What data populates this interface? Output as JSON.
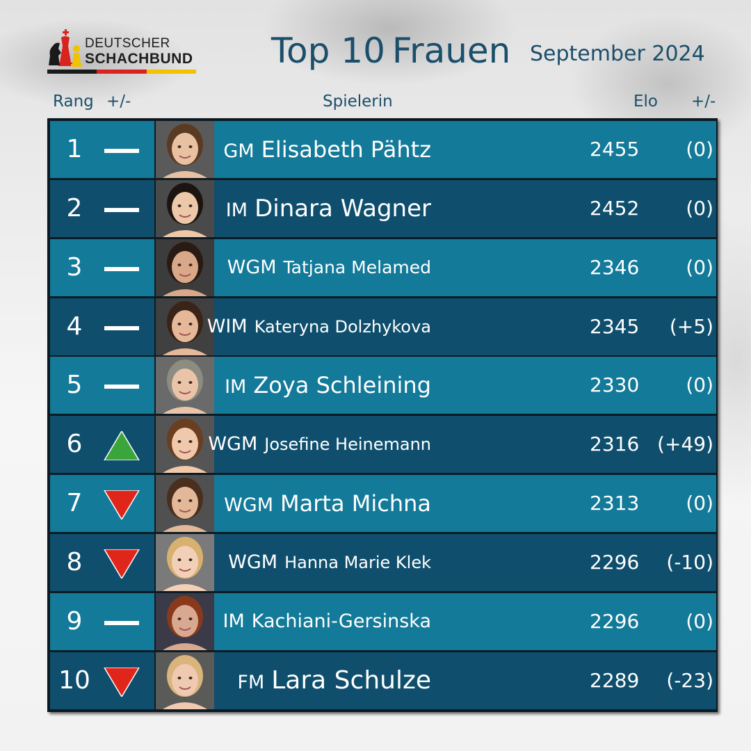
{
  "logo": {
    "line1": "DEUTSCHER",
    "line2": "SCHACHBUND",
    "flag_colors": [
      "#1a1a1a",
      "#d8231f",
      "#f2c200"
    ]
  },
  "header": {
    "title_part1": "Top 10",
    "title_part2": "Frauen",
    "date": "September 2024"
  },
  "columns": {
    "rank": "Rang",
    "rank_change": "+/-",
    "player": "Spielerin",
    "elo": "Elo",
    "elo_change": "+/-"
  },
  "colors": {
    "row_light": "#137a9a",
    "row_dark": "#0f4f6d",
    "up": "#3aa53a",
    "down": "#e0261b",
    "title": "#1a4e6a"
  },
  "rows": [
    {
      "rank": "1",
      "trend": "same",
      "title": "GM",
      "name": "Elisabeth Pähtz",
      "elo": "2455",
      "diff": "(0)"
    },
    {
      "rank": "2",
      "trend": "same",
      "title": "IM",
      "name": "Dinara Wagner",
      "elo": "2452",
      "diff": "(0)"
    },
    {
      "rank": "3",
      "trend": "same",
      "title": "WGM",
      "name": "Tatjana Melamed",
      "elo": "2346",
      "diff": "(0)"
    },
    {
      "rank": "4",
      "trend": "same",
      "title": "WIM",
      "name": "Kateryna Dolzhykova",
      "elo": "2345",
      "diff": "(+5)"
    },
    {
      "rank": "5",
      "trend": "same",
      "title": "IM",
      "name": "Zoya Schleining",
      "elo": "2330",
      "diff": "(0)"
    },
    {
      "rank": "6",
      "trend": "up",
      "title": "WGM",
      "name": "Josefine Heinemann",
      "elo": "2316",
      "diff": "(+49)"
    },
    {
      "rank": "7",
      "trend": "down",
      "title": "WGM",
      "name": "Marta Michna",
      "elo": "2313",
      "diff": "(0)"
    },
    {
      "rank": "8",
      "trend": "down",
      "title": "WGM",
      "name": "Hanna Marie Klek",
      "elo": "2296",
      "diff": "(-10)"
    },
    {
      "rank": "9",
      "trend": "same",
      "title": "IM",
      "name": "Kachiani-Gersinska",
      "elo": "2296",
      "diff": "(0)"
    },
    {
      "rank": "10",
      "trend": "down",
      "title": "FM",
      "name": "Lara Schulze",
      "elo": "2289",
      "diff": "(-23)"
    }
  ]
}
